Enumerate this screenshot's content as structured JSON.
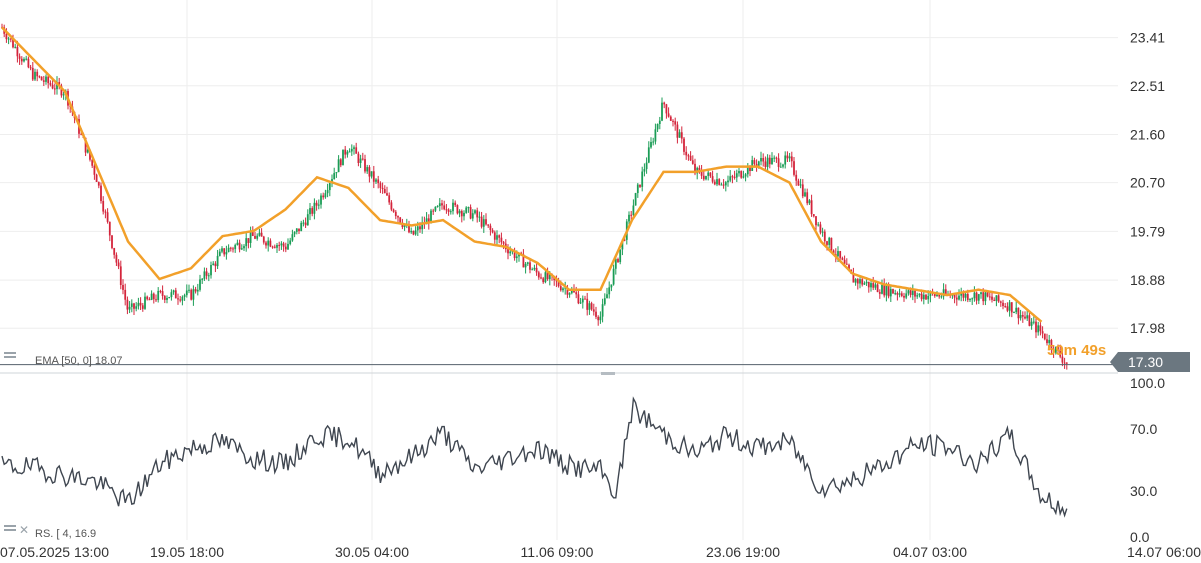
{
  "colors": {
    "up": "#1a9c55",
    "down": "#d4243b",
    "ema": "#f2a02a",
    "rsi": "#3f4650",
    "grid": "#eeeeee",
    "price_line": "#54616b",
    "price_badge": "#6b7780",
    "price_badge_text": "#ffffff",
    "countdown": "#f2a02a"
  },
  "price_panel": {
    "y_ticks": [
      "23.41",
      "22.51",
      "21.60",
      "20.70",
      "19.79",
      "18.88",
      "17.98"
    ],
    "current_price": "17.30",
    "countdown": "59m 49s",
    "ema_label": "EMA [50, 0] 18.07"
  },
  "indicator_panel": {
    "y_ticks": [
      "100.0",
      "70.0",
      "30.0",
      "0.0"
    ],
    "label": "RS. [ 4, 16.9"
  },
  "x_axis": {
    "labels": [
      "07.05.2025  13:00",
      "19.05  18:00",
      "30.05  04:00",
      "11.06  09:00",
      "23.06  19:00",
      "04.07  03:00",
      "14.07  06:00"
    ]
  },
  "chart_data": [
    {
      "type": "candlestick",
      "y_ticks": [
        23.41,
        22.51,
        21.6,
        20.7,
        19.79,
        18.88,
        17.98
      ],
      "ylim": [
        17.2,
        24.0
      ],
      "current_price": 17.3,
      "series": [
        {
          "name": "Price",
          "x": [
            0,
            3,
            6,
            9,
            12,
            15,
            18,
            21,
            24,
            27,
            30,
            33,
            36,
            39,
            42,
            45,
            48,
            51,
            54,
            57,
            60,
            63,
            66,
            69,
            72,
            75,
            78,
            81,
            84,
            87,
            90,
            93,
            96,
            99,
            101.5
          ],
          "values": [
            23.6,
            22.7,
            22.4,
            20.8,
            18.3,
            18.6,
            18.6,
            19.4,
            19.7,
            19.5,
            20.3,
            21.4,
            20.6,
            19.7,
            20.3,
            20.1,
            19.5,
            19.0,
            18.7,
            18.2,
            20.2,
            22.2,
            20.9,
            20.7,
            21.1,
            21.1,
            19.8,
            18.9,
            18.7,
            18.6,
            18.6,
            18.6,
            18.4,
            17.9,
            17.3
          ]
        },
        {
          "name": "EMA [50, 0]",
          "x": [
            0,
            3,
            6,
            9,
            12,
            15,
            18,
            21,
            24,
            27,
            30,
            33,
            36,
            39,
            42,
            45,
            48,
            51,
            54,
            57,
            60,
            63,
            66,
            69,
            72,
            75,
            78,
            81,
            84,
            87,
            90,
            93,
            96,
            99
          ],
          "values": [
            23.6,
            23.0,
            22.4,
            21.0,
            19.6,
            18.9,
            19.1,
            19.7,
            19.8,
            20.2,
            20.8,
            20.6,
            20.0,
            19.9,
            20.0,
            19.6,
            19.5,
            19.2,
            18.7,
            18.7,
            20.0,
            20.9,
            20.9,
            21.0,
            21.0,
            20.7,
            19.6,
            19.0,
            18.8,
            18.7,
            18.6,
            18.7,
            18.6,
            18.1
          ]
        }
      ]
    },
    {
      "type": "line",
      "y_ticks": [
        100.0,
        70.0,
        30.0,
        0.0
      ],
      "ylim": [
        0,
        100
      ],
      "series": [
        {
          "name": "RS. [ 4",
          "x": [
            0,
            3,
            6,
            9,
            12,
            15,
            18,
            21,
            24,
            27,
            30,
            33,
            36,
            39,
            42,
            45,
            48,
            51,
            54,
            57,
            58.5,
            60,
            63,
            66,
            69,
            72,
            75,
            78,
            81,
            84,
            87,
            90,
            93,
            96,
            99,
            101.5
          ],
          "values": [
            46,
            45,
            40,
            36,
            22,
            47,
            58,
            62,
            51,
            47,
            66,
            64,
            42,
            52,
            68,
            44,
            51,
            58,
            46,
            43,
            28,
            84,
            67,
            54,
            66,
            58,
            62,
            32,
            37,
            47,
            60,
            59,
            47,
            66,
            26,
            17
          ]
        }
      ]
    }
  ]
}
